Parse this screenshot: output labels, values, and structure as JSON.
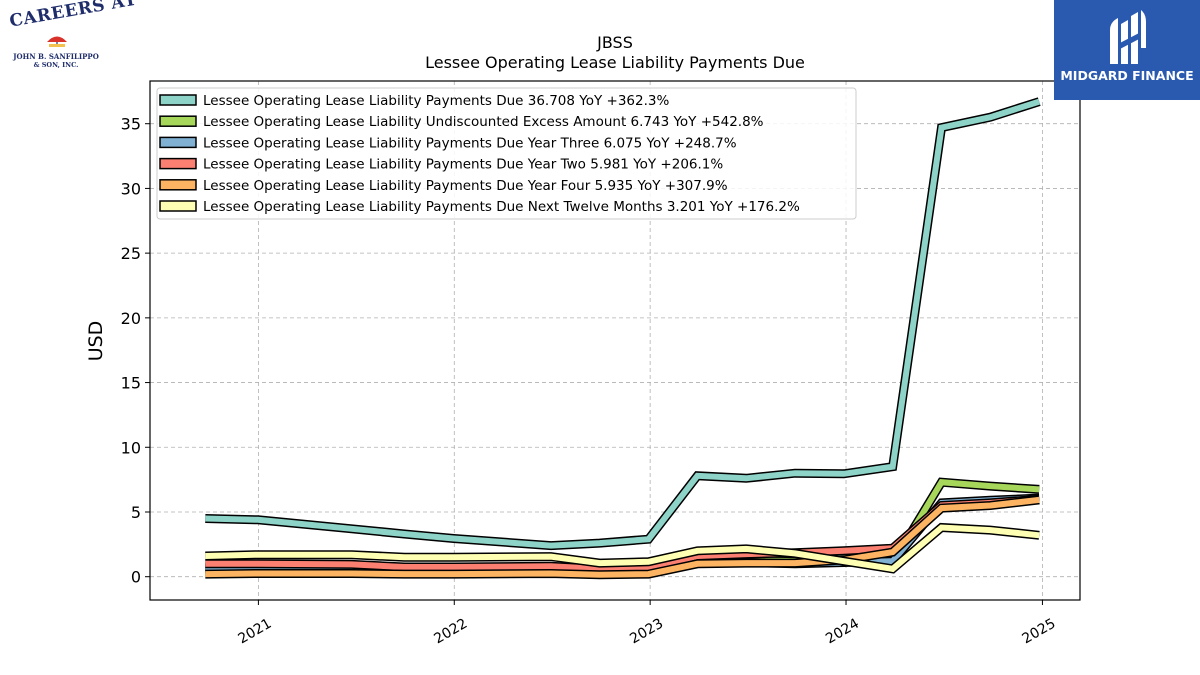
{
  "logos": {
    "left": {
      "line1": "CAREERS AT",
      "line2": "JOHN B. SANFILIPPO",
      "line3": "& SON, INC."
    },
    "right": {
      "brand": "MIDGARD FINANCE",
      "color": "#2a5ab0"
    }
  },
  "chart_data": {
    "type": "line",
    "title": "JBSS",
    "subtitle": "Lessee Operating Lease Liability Payments Due",
    "ylabel": "USD",
    "xlabel": "",
    "ylim": [
      -1.8,
      38.3
    ],
    "xlim": [
      "2020-06-13",
      "2025-03-12"
    ],
    "yticks": [
      0,
      5,
      10,
      15,
      20,
      25,
      30,
      35
    ],
    "xticks": [
      {
        "date": "2021-01-01",
        "label": "2021"
      },
      {
        "date": "2022-01-01",
        "label": "2022"
      },
      {
        "date": "2023-01-01",
        "label": "2023"
      },
      {
        "date": "2024-01-01",
        "label": "2024"
      },
      {
        "date": "2025-01-01",
        "label": "2025"
      }
    ],
    "grid": true,
    "legend_position": "top-left",
    "x": [
      "2020-09-24",
      "2020-12-31",
      "2021-06-24",
      "2021-09-30",
      "2021-12-31",
      "2022-06-30",
      "2022-09-29",
      "2022-12-29",
      "2023-03-30",
      "2023-06-29",
      "2023-09-28",
      "2023-12-28",
      "2024-03-28",
      "2024-06-27",
      "2024-09-26",
      "2024-12-26"
    ],
    "series": [
      {
        "name": "Lessee Operating Lease Liability Payments Due  36.708 YoY +362.3%",
        "color": "#8dd3c7",
        "values": [
          4.5,
          4.4,
          3.7,
          3.3,
          2.95,
          2.4,
          2.6,
          2.9,
          7.8,
          7.6,
          8.0,
          7.95,
          8.5,
          34.7,
          35.5,
          36.708
        ]
      },
      {
        "name": "Lessee Operating Lease Liability Undiscounted Excess Amount  6.743 YoY +542.8%",
        "color": "#a6d75b",
        "values": [
          0.7,
          0.75,
          0.75,
          0.6,
          0.6,
          0.6,
          0.5,
          0.55,
          1.3,
          1.3,
          1.2,
          1.15,
          1.05,
          7.3,
          7.0,
          6.743
        ]
      },
      {
        "name": "Lessee Operating Lease Liability Payments Due Year Three  6.075 YoY +248.7%",
        "color": "#80b1d3",
        "values": [
          0.6,
          0.6,
          0.6,
          0.5,
          0.55,
          0.65,
          0.55,
          0.6,
          1.2,
          1.1,
          1.0,
          1.1,
          1.2,
          5.7,
          5.9,
          6.075
        ]
      },
      {
        "name": "Lessee Operating Lease Liability Payments Due Year Two  5.981 YoY +206.1%",
        "color": "#fb8072",
        "values": [
          1.0,
          1.0,
          0.95,
          0.75,
          0.75,
          0.8,
          0.6,
          0.65,
          1.6,
          1.75,
          1.85,
          2.0,
          2.2,
          5.5,
          5.7,
          5.981
        ]
      },
      {
        "name": "Lessee Operating Lease Liability Payments Due Year Four  5.935 YoY +307.9%",
        "color": "#fdb462",
        "values": [
          0.2,
          0.25,
          0.25,
          0.2,
          0.2,
          0.25,
          0.15,
          0.2,
          1.0,
          1.05,
          1.05,
          1.3,
          1.9,
          5.3,
          5.5,
          5.935
        ]
      },
      {
        "name": "Lessee Operating Lease Liability Payments Due Next Twelve Months  3.201 YoY +176.2%",
        "color": "#ffffb3",
        "values": [
          1.6,
          1.7,
          1.7,
          1.5,
          1.5,
          1.55,
          1.05,
          1.15,
          2.0,
          2.15,
          1.8,
          1.2,
          0.6,
          3.8,
          3.6,
          3.201
        ]
      }
    ]
  }
}
